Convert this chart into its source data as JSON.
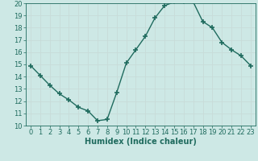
{
  "x": [
    0,
    1,
    2,
    3,
    4,
    5,
    6,
    7,
    8,
    9,
    10,
    11,
    12,
    13,
    14,
    15,
    16,
    17,
    18,
    19,
    20,
    21,
    22,
    23
  ],
  "y": [
    14.9,
    14.1,
    13.3,
    12.6,
    12.1,
    11.5,
    11.2,
    10.4,
    10.5,
    12.7,
    15.1,
    16.2,
    17.3,
    18.8,
    19.8,
    20.1,
    20.1,
    20.1,
    18.5,
    18.0,
    16.8,
    16.2,
    15.7,
    14.9
  ],
  "xlabel": "Humidex (Indice chaleur)",
  "bg_color": "#cde8e5",
  "line_color": "#1f6b5e",
  "marker": "+",
  "marker_size": 5,
  "line_width": 1.0,
  "ylim": [
    10,
    20
  ],
  "xlim": [
    -0.5,
    23.5
  ],
  "yticks": [
    10,
    11,
    12,
    13,
    14,
    15,
    16,
    17,
    18,
    19,
    20
  ],
  "xticks": [
    0,
    1,
    2,
    3,
    4,
    5,
    6,
    7,
    8,
    9,
    10,
    11,
    12,
    13,
    14,
    15,
    16,
    17,
    18,
    19,
    20,
    21,
    22,
    23
  ],
  "grid_major_color": "#b0d0cc",
  "grid_minor_color": "#cde8e5",
  "tick_color": "#1f6b5e",
  "label_color": "#1f6b5e",
  "xlabel_fontsize": 7,
  "tick_fontsize": 6
}
